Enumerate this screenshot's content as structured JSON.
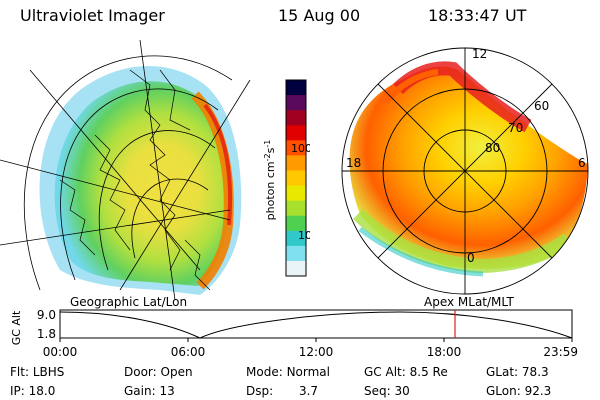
{
  "header": {
    "instrument": "Ultraviolet Imager",
    "date": "15 Aug 00",
    "time": "18:33:47 UT"
  },
  "colorbar": {
    "label_text": "photon cm",
    "label_sup1": "-2",
    "label_mid": "s",
    "label_sup2": "-1",
    "ticks": [
      "100",
      "10"
    ],
    "scale": "log",
    "colors": [
      "#000040",
      "#5a0a5a",
      "#a00020",
      "#e00000",
      "#ff5000",
      "#ff9a00",
      "#ffc800",
      "#e8e800",
      "#a8e030",
      "#50d050",
      "#30c8c8",
      "#80e0f0",
      "#e8f4f8"
    ]
  },
  "left_panel": {
    "caption": "Geographic Lat/Lon"
  },
  "right_panel": {
    "caption": "Apex  MLat/MLT",
    "mlt_labels": [
      "12",
      "18",
      "6",
      "0"
    ],
    "lat_labels": [
      "60",
      "70",
      "80"
    ]
  },
  "orbit_plot": {
    "ylabel": "GC Alt",
    "yticks": [
      "9.0",
      "1.8"
    ],
    "xticks": [
      "00:00",
      "06:00",
      "12:00",
      "18:00",
      "23:59"
    ],
    "current_time_marker": "18:33",
    "marker_color": "#e02020"
  },
  "footer": {
    "flt_label": "Flt:",
    "flt_value": "LBHS",
    "ip_label": "IP:",
    "ip_value": "18.0",
    "door_label": "Door:",
    "door_value": "Open",
    "gain_label": "Gain:",
    "gain_value": "13",
    "mode_label": "Mode:",
    "mode_value": "Normal",
    "dsp_label": "Dsp:",
    "dsp_value": "3.7",
    "gcalt_label": "GC Alt:",
    "gcalt_value": "8.5 Re",
    "seq_label": "Seq:",
    "seq_value": "30",
    "glat_label": "GLat:",
    "glat_value": "78.3",
    "glon_label": "GLon:",
    "glon_value": "92.3"
  }
}
